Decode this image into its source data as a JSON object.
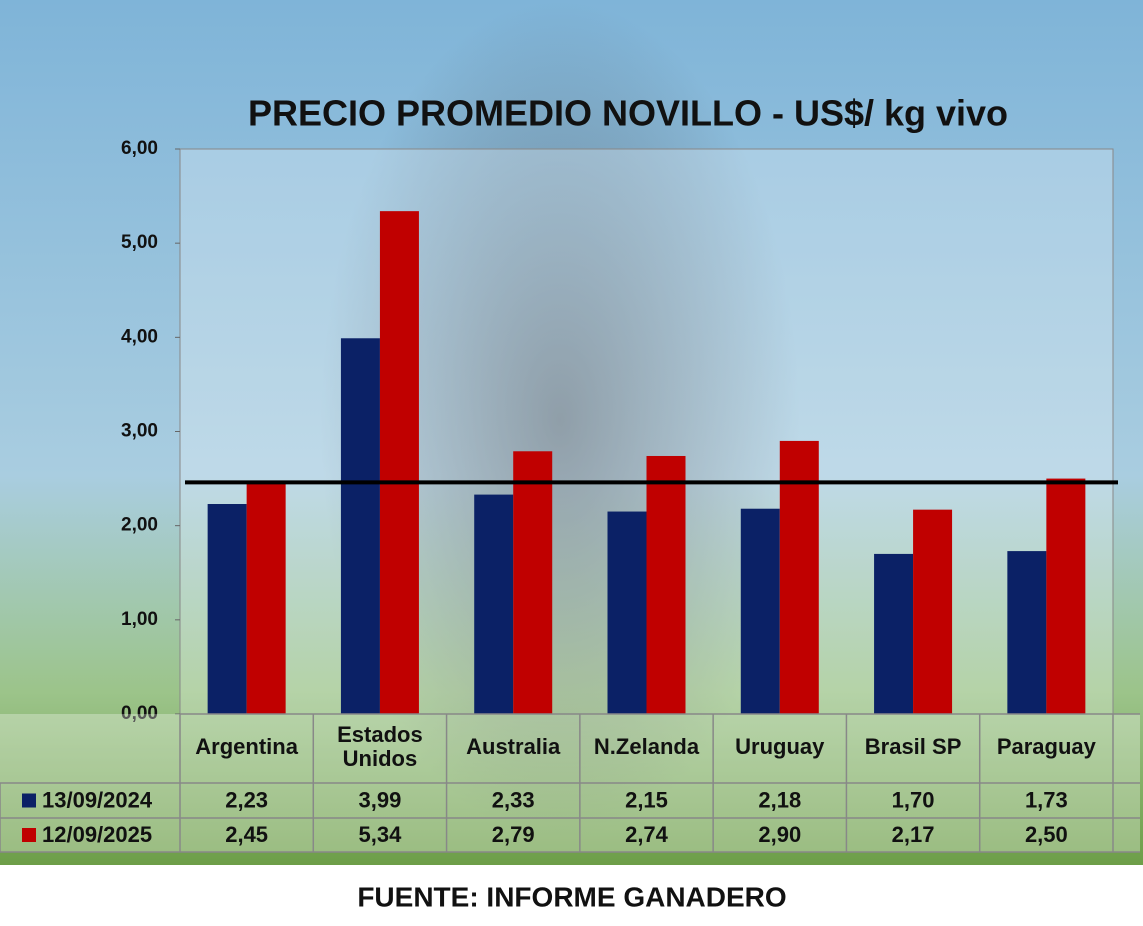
{
  "chart_data": {
    "type": "bar",
    "title": "PRECIO PROMEDIO NOVILLO  - US$/ kg vivo",
    "categories": [
      "Argentina",
      "Estados Unidos",
      "Australia",
      "N.Zelanda",
      "Uruguay",
      "Brasil SP",
      "Paraguay"
    ],
    "series": [
      {
        "name": "13/09/2024",
        "color": "#0b2166",
        "values": [
          2.23,
          3.99,
          2.33,
          2.15,
          2.18,
          1.7,
          1.73
        ],
        "value_labels": [
          "2,23",
          "3,99",
          "2,33",
          "2,15",
          "2,18",
          "1,70",
          "1,73"
        ]
      },
      {
        "name": "12/09/2025",
        "color": "#c00000",
        "values": [
          2.45,
          5.34,
          2.79,
          2.74,
          2.9,
          2.17,
          2.5
        ],
        "value_labels": [
          "2,45",
          "5,34",
          "2,79",
          "2,74",
          "2,90",
          "2,17",
          "2,50"
        ]
      }
    ],
    "reference_line": 2.46,
    "ylim": [
      0,
      6
    ],
    "yticks": [
      {
        "value": 0,
        "label": "0,00"
      },
      {
        "value": 1,
        "label": "1,00"
      },
      {
        "value": 2,
        "label": "2,00"
      },
      {
        "value": 3,
        "label": "3,00"
      },
      {
        "value": 4,
        "label": "4,00"
      },
      {
        "value": 5,
        "label": "5,00"
      },
      {
        "value": 6,
        "label": "6,00"
      }
    ],
    "source": "FUENTE: INFORME GANADERO"
  }
}
